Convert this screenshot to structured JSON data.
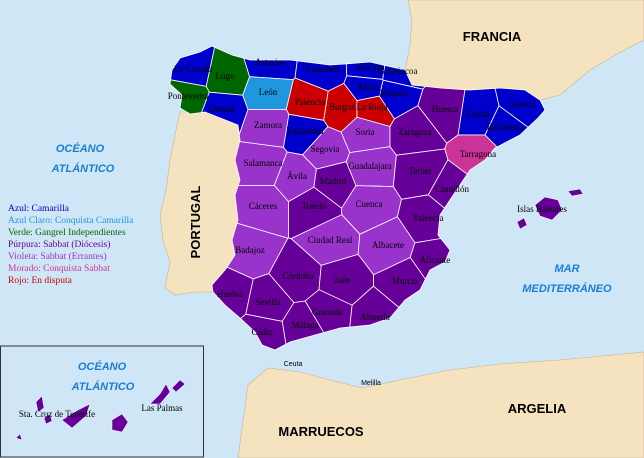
{
  "legend": [
    {
      "key": "azul",
      "label": "Azul: Camarilla",
      "color": "#0000cc"
    },
    {
      "key": "azul_claro",
      "label": "Azul Claro: Conquista Camarilla",
      "color": "#1e96e0"
    },
    {
      "key": "verde",
      "label": "Verde: Gangrel Independientes",
      "color": "#006600"
    },
    {
      "key": "purpura",
      "label": "Púrpura: Sabbat (Diócesis)",
      "color": "#660099"
    },
    {
      "key": "violeta",
      "label": "Violeta: Sabbat (Errantes)",
      "color": "#9933cc"
    },
    {
      "key": "morado",
      "label": "Morado: Conquista Sabbat",
      "color": "#cc3399"
    },
    {
      "key": "rojo",
      "label": "Rojo: En disputa",
      "color": "#cc0000"
    }
  ],
  "colors": {
    "sea": "#cfe6f7",
    "land": "#f5e3bf",
    "border": "#ffffff",
    "sea_label": "#1a7fd4"
  },
  "seas": {
    "atlantic_1": "OCÉANO",
    "atlantic_2": "ATLÁNTICO",
    "med_1": "MAR",
    "med_2": "MEDITERRÁNEO",
    "canary_1": "OCÉANO",
    "canary_2": "ATLÁNTICO"
  },
  "countries": {
    "france": "FRANCIA",
    "portugal": "PORTUGAL",
    "algeria": "ARGELIA",
    "morocco": "MARRUECOS"
  },
  "cities": {
    "ceuta": "Ceuta",
    "melilla": "Melilla"
  },
  "provinces": [
    {
      "name": "La Coruña",
      "status": "azul"
    },
    {
      "name": "Lugo",
      "status": "verde"
    },
    {
      "name": "Asturias",
      "status": "azul"
    },
    {
      "name": "Cantabria",
      "status": "azul"
    },
    {
      "name": "Vizcaya",
      "status": "azul"
    },
    {
      "name": "Guipúzcoa",
      "status": "azul"
    },
    {
      "name": "Álava",
      "status": "azul"
    },
    {
      "name": "Navarra",
      "status": "azul"
    },
    {
      "name": "Pontevedra",
      "status": "verde"
    },
    {
      "name": "Orense",
      "status": "azul"
    },
    {
      "name": "León",
      "status": "azul_claro"
    },
    {
      "name": "Palencia",
      "status": "rojo"
    },
    {
      "name": "Burgos",
      "status": "rojo"
    },
    {
      "name": "La Rioja",
      "status": "rojo"
    },
    {
      "name": "Zamora",
      "status": "violeta"
    },
    {
      "name": "Valladolid",
      "status": "azul"
    },
    {
      "name": "Soria",
      "status": "violeta"
    },
    {
      "name": "Segovia",
      "status": "violeta"
    },
    {
      "name": "Huesca",
      "status": "purpura"
    },
    {
      "name": "Lérida",
      "status": "azul"
    },
    {
      "name": "Gerona",
      "status": "azul"
    },
    {
      "name": "Barcelona",
      "status": "azul"
    },
    {
      "name": "Zaragoza",
      "status": "purpura"
    },
    {
      "name": "Tarragona",
      "status": "morado"
    },
    {
      "name": "Salamanca",
      "status": "violeta"
    },
    {
      "name": "Ávila",
      "status": "violeta"
    },
    {
      "name": "Madrid",
      "status": "purpura"
    },
    {
      "name": "Guadalajara",
      "status": "violeta"
    },
    {
      "name": "Teruel",
      "status": "purpura"
    },
    {
      "name": "Castellón",
      "status": "purpura"
    },
    {
      "name": "Cáceres",
      "status": "violeta"
    },
    {
      "name": "Toledo",
      "status": "purpura"
    },
    {
      "name": "Cuenca",
      "status": "violeta"
    },
    {
      "name": "Valencia",
      "status": "purpura"
    },
    {
      "name": "Badajoz",
      "status": "violeta"
    },
    {
      "name": "Ciudad Real",
      "status": "violeta"
    },
    {
      "name": "Albacete",
      "status": "violeta"
    },
    {
      "name": "Alicante",
      "status": "purpura"
    },
    {
      "name": "Córdoba",
      "status": "purpura"
    },
    {
      "name": "Jaén",
      "status": "purpura"
    },
    {
      "name": "Murcia",
      "status": "purpura"
    },
    {
      "name": "Huelva",
      "status": "purpura"
    },
    {
      "name": "Sevilla",
      "status": "purpura"
    },
    {
      "name": "Granada",
      "status": "purpura"
    },
    {
      "name": "Almería",
      "status": "purpura"
    },
    {
      "name": "Málaga",
      "status": "purpura"
    },
    {
      "name": "Cádiz",
      "status": "purpura"
    }
  ],
  "islands": [
    {
      "name": "Islas Baleares",
      "status": "purpura"
    },
    {
      "name": "Sta. Cruz de Tenerife",
      "status": "purpura"
    },
    {
      "name": "Las Palmas",
      "status": "purpura"
    }
  ]
}
